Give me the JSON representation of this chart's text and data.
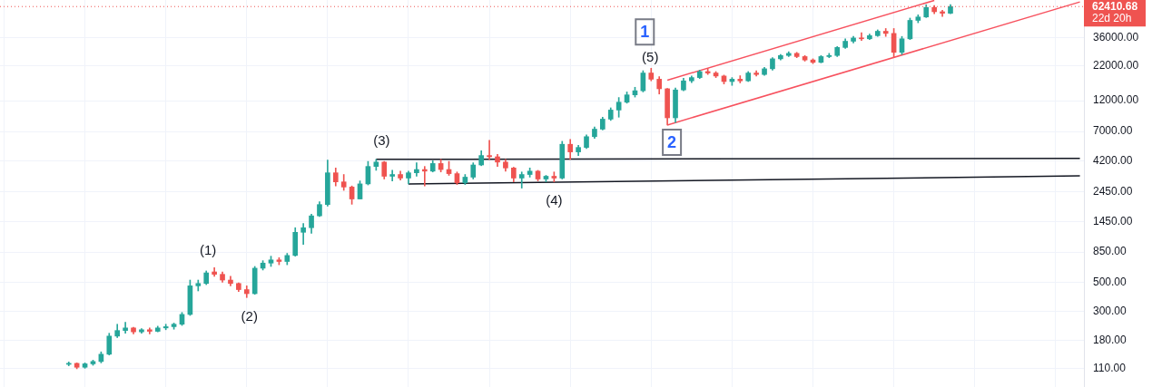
{
  "chart_data": {
    "type": "candlestick",
    "categories": [
      null,
      null,
      null,
      null,
      null,
      null,
      null,
      null,
      null,
      null,
      null,
      null,
      null,
      null,
      null,
      null,
      null,
      null,
      null,
      null,
      null,
      null,
      null,
      null,
      null,
      null,
      null,
      null,
      null,
      null,
      null,
      null,
      null,
      null,
      null,
      null,
      null,
      null,
      null,
      null,
      null,
      null,
      null,
      null,
      null,
      null,
      null,
      null,
      null,
      null,
      null,
      null,
      null,
      null,
      null,
      null,
      null,
      null,
      null,
      null,
      null,
      null,
      null,
      null,
      null,
      null,
      null,
      null,
      null,
      null,
      null,
      null,
      null,
      null,
      null,
      null,
      null,
      null,
      null,
      null,
      null,
      null,
      null,
      null,
      null,
      null,
      null,
      null,
      null,
      null,
      null,
      null,
      null,
      null,
      null,
      null,
      null,
      null,
      null,
      null,
      null,
      null,
      null,
      null,
      null,
      null,
      null,
      null,
      null,
      null,
      null,
      null,
      null,
      null,
      null,
      null,
      null,
      null,
      null,
      null,
      null,
      null,
      null,
      null,
      null,
      null,
      null,
      null,
      null,
      null,
      null,
      null,
      null,
      null
    ],
    "ohlc": [
      null,
      null,
      null,
      null,
      null,
      null,
      null,
      null,
      [
        119,
        124,
        116,
        121
      ],
      [
        121,
        122,
        110,
        113
      ],
      [
        113,
        122,
        111,
        120
      ],
      [
        120,
        128,
        117,
        125
      ],
      [
        125,
        148,
        122,
        142
      ],
      [
        142,
        205,
        140,
        195
      ],
      [
        195,
        240,
        190,
        215
      ],
      [
        215,
        248,
        205,
        225
      ],
      [
        225,
        228,
        203,
        210
      ],
      [
        210,
        222,
        205,
        218
      ],
      [
        218,
        225,
        203,
        212
      ],
      [
        212,
        232,
        210,
        225
      ],
      [
        225,
        240,
        218,
        230
      ],
      [
        230,
        245,
        220,
        240
      ],
      [
        240,
        295,
        235,
        285
      ],
      [
        285,
        520,
        280,
        470
      ],
      [
        470,
        520,
        430,
        490
      ],
      [
        490,
        610,
        480,
        590
      ],
      [
        600,
        645,
        555,
        575
      ],
      [
        575,
        600,
        500,
        520
      ],
      [
        520,
        555,
        470,
        490
      ],
      [
        490,
        495,
        425,
        440
      ],
      [
        440,
        470,
        383,
        410
      ],
      [
        410,
        660,
        405,
        640
      ],
      [
        640,
        730,
        620,
        700
      ],
      [
        700,
        790,
        660,
        740
      ],
      [
        740,
        770,
        680,
        720
      ],
      [
        720,
        830,
        680,
        800
      ],
      [
        800,
        1300,
        790,
        1200
      ],
      [
        1200,
        1400,
        970,
        1300
      ],
      [
        1300,
        1650,
        1180,
        1600
      ],
      [
        1600,
        2050,
        1580,
        1950
      ],
      [
        1950,
        4250,
        1900,
        3400
      ],
      [
        3400,
        3700,
        2700,
        2900
      ],
      [
        2900,
        3300,
        2500,
        2650
      ],
      [
        2650,
        2700,
        1960,
        2150
      ],
      [
        2150,
        2950,
        2150,
        2800
      ],
      [
        2800,
        4150,
        2750,
        3800
      ],
      [
        3800,
        4300,
        3550,
        4100
      ],
      [
        4100,
        4150,
        3050,
        3200
      ],
      [
        3200,
        3550,
        2950,
        3300
      ],
      [
        3300,
        3500,
        3000,
        3100
      ],
      [
        3100,
        3500,
        2800,
        3400
      ],
      [
        3400,
        4050,
        3200,
        3600
      ],
      [
        3600,
        3800,
        2700,
        3500
      ],
      [
        3500,
        4200,
        3450,
        4000
      ],
      [
        4000,
        4300,
        3450,
        3600
      ],
      [
        3600,
        4150,
        3250,
        3350
      ],
      [
        3350,
        3450,
        2770,
        2850
      ],
      [
        2850,
        3300,
        2770,
        3150
      ],
      [
        3150,
        4050,
        3050,
        3900
      ],
      [
        3900,
        5000,
        3850,
        4600
      ],
      [
        4600,
        6000,
        4300,
        4500
      ],
      [
        4500,
        4700,
        3800,
        4100
      ],
      [
        4100,
        4300,
        3500,
        3700
      ],
      [
        3700,
        3750,
        2900,
        3100
      ],
      [
        3100,
        3450,
        2600,
        3300
      ],
      [
        3300,
        3700,
        3150,
        3500
      ],
      [
        3500,
        3550,
        2950,
        3050
      ],
      [
        3050,
        3250,
        2900,
        3200
      ],
      [
        3200,
        3450,
        2900,
        3100
      ],
      [
        3100,
        5900,
        3050,
        5600
      ],
      [
        5600,
        6100,
        4300,
        4900
      ],
      [
        4900,
        5500,
        4600,
        5300
      ],
      [
        5300,
        6600,
        5200,
        6400
      ],
      [
        6400,
        7600,
        6200,
        7300
      ],
      [
        7300,
        9000,
        7200,
        8700
      ],
      [
        8700,
        10600,
        8500,
        10200
      ],
      [
        10200,
        12700,
        9000,
        11700
      ],
      [
        11700,
        14000,
        11500,
        13300
      ],
      [
        13300,
        15200,
        12800,
        14300
      ],
      [
        14300,
        20300,
        14000,
        19500
      ],
      [
        19500,
        21200,
        17000,
        17500
      ],
      [
        17500,
        18300,
        13500,
        14800
      ],
      [
        14800,
        14900,
        7850,
        8900
      ],
      [
        8900,
        15000,
        8200,
        14500
      ],
      [
        14500,
        17800,
        14300,
        17000
      ],
      [
        17000,
        18500,
        16500,
        18000
      ],
      [
        18000,
        20500,
        17700,
        20000
      ],
      [
        20000,
        21100,
        19000,
        19500
      ],
      [
        19500,
        20000,
        18000,
        18500
      ],
      [
        18500,
        18800,
        16100,
        16800
      ],
      [
        16800,
        18000,
        15700,
        17500
      ],
      [
        17500,
        18600,
        16400,
        17000
      ],
      [
        17000,
        20000,
        16800,
        19500
      ],
      [
        19500,
        20300,
        18500,
        19000
      ],
      [
        19000,
        21500,
        18700,
        21000
      ],
      [
        21000,
        25500,
        20500,
        25000
      ],
      [
        25000,
        27000,
        24500,
        26500
      ],
      [
        26500,
        28300,
        26000,
        27500
      ],
      [
        27500,
        28000,
        25500,
        26000
      ],
      [
        26000,
        26500,
        24000,
        24500
      ],
      [
        24500,
        25000,
        23000,
        23500
      ],
      [
        23500,
        26500,
        23300,
        26000
      ],
      [
        26000,
        27500,
        25500,
        26500
      ],
      [
        26500,
        31000,
        26000,
        30500
      ],
      [
        30500,
        35500,
        30000,
        34000
      ],
      [
        34000,
        37000,
        33000,
        36000
      ],
      [
        36000,
        39500,
        34500,
        35500
      ],
      [
        35500,
        38500,
        35000,
        37500
      ],
      [
        37500,
        41500,
        37000,
        40500
      ],
      [
        40500,
        42500,
        37000,
        39000
      ],
      [
        39000,
        42500,
        25900,
        28000
      ],
      [
        28000,
        37000,
        27000,
        35500
      ],
      [
        35500,
        51000,
        35000,
        49000
      ],
      [
        49000,
        54000,
        47000,
        52000
      ],
      [
        52000,
        64500,
        51500,
        61500
      ],
      [
        61500,
        63500,
        55000,
        57000
      ],
      [
        57000,
        58500,
        52500,
        55500
      ],
      [
        55500,
        64500,
        55000,
        62410.68
      ],
      null,
      null,
      null,
      null,
      null,
      null,
      null,
      null,
      null,
      null,
      null,
      null,
      null,
      null,
      null,
      null
    ],
    "colors": [
      null,
      null,
      null,
      null,
      null,
      null,
      null,
      null,
      "#26a69a",
      "#ef5350",
      "#26a69a",
      "#26a69a",
      "#26a69a",
      "#26a69a",
      "#26a69a",
      "#26a69a",
      "#ef5350",
      "#26a69a",
      "#ef5350",
      "#26a69a",
      "#26a69a",
      "#26a69a",
      "#26a69a",
      "#26a69a",
      "#26a69a",
      "#26a69a",
      "#ef5350",
      "#ef5350",
      "#ef5350",
      "#ef5350",
      "#ef5350",
      "#26a69a",
      "#26a69a",
      "#26a69a",
      "#ef5350",
      "#26a69a",
      "#26a69a",
      "#26a69a",
      "#26a69a",
      "#26a69a",
      "#26a69a",
      "#ef5350",
      "#ef5350",
      "#ef5350",
      "#26a69a",
      "#26a69a",
      "#26a69a",
      "#ef5350",
      "#26a69a",
      "#ef5350",
      "#26a69a",
      "#26a69a",
      "#ef5350",
      "#26a69a",
      "#ef5350",
      "#ef5350",
      "#ef5350",
      "#26a69a",
      "#26a69a",
      "#26a69a",
      "#ef5350",
      "#ef5350",
      "#ef5350",
      "#ef5350",
      "#26a69a",
      "#26a69a",
      "#ef5350",
      "#26a69a",
      "#ef5350",
      "#26a69a",
      "#ef5350",
      "#26a69a",
      "#26a69a",
      "#26a69a",
      "#26a69a",
      "#26a69a",
      "#26a69a",
      "#26a69a",
      "#26a69a",
      "#26a69a",
      "#ef5350",
      "#ef5350",
      "#ef5350",
      "#26a69a",
      "#26a69a",
      "#26a69a",
      "#26a69a",
      "#ef5350",
      "#ef5350",
      "#ef5350",
      "#26a69a",
      "#ef5350",
      "#26a69a",
      "#ef5350",
      "#26a69a",
      "#26a69a",
      "#26a69a",
      "#26a69a",
      "#ef5350",
      "#ef5350",
      "#ef5350",
      "#26a69a",
      "#26a69a",
      "#26a69a",
      "#26a69a",
      "#26a69a",
      "#ef5350",
      "#26a69a",
      "#26a69a",
      "#ef5350",
      "#ef5350",
      "#26a69a",
      "#26a69a",
      "#26a69a",
      "#26a69a",
      "#ef5350",
      "#ef5350",
      "#26a69a",
      null,
      null,
      null,
      null,
      null,
      null,
      null,
      null,
      null,
      null,
      null,
      null,
      null,
      null,
      null,
      null
    ],
    "series": [
      {
        "type": "line",
        "color": "#131722",
        "values": [
          null,
          null,
          null,
          null,
          null,
          null,
          null,
          null,
          null,
          null,
          null,
          null,
          null,
          null,
          null,
          null,
          null,
          null,
          null,
          null,
          null,
          null,
          null,
          null,
          null,
          null,
          null,
          null,
          null,
          null,
          null,
          null,
          null,
          null,
          null,
          null,
          null,
          null,
          null,
          null,
          null,
          null,
          null,
          null,
          null,
          null,
          4300,
          null,
          null,
          null,
          null,
          null,
          null,
          null,
          null,
          null,
          null,
          null,
          null,
          null,
          null,
          null,
          null,
          null,
          null,
          null,
          null,
          null,
          null,
          null,
          null,
          null,
          null,
          null,
          null,
          null,
          null,
          null,
          null,
          null,
          null,
          null,
          null,
          null,
          null,
          null,
          null,
          null,
          null,
          null,
          null,
          null,
          null,
          null,
          null,
          null,
          null,
          null,
          null,
          null,
          null,
          null,
          null,
          null,
          null,
          null,
          null,
          null,
          null,
          null,
          null,
          null,
          null,
          null,
          null,
          null,
          null,
          null,
          null,
          null,
          null,
          null,
          null,
          null,
          null,
          null,
          null,
          null,
          null,
          null,
          null,
          null,
          null,
          4380
        ]
      },
      {
        "type": "line",
        "color": "#131722",
        "values": [
          null,
          null,
          null,
          null,
          null,
          null,
          null,
          null,
          null,
          null,
          null,
          null,
          null,
          null,
          null,
          null,
          null,
          null,
          null,
          null,
          null,
          null,
          null,
          null,
          null,
          null,
          null,
          null,
          null,
          null,
          null,
          null,
          null,
          null,
          null,
          null,
          null,
          null,
          null,
          null,
          null,
          null,
          null,
          null,
          null,
          null,
          null,
          null,
          null,
          null,
          2800,
          null,
          null,
          null,
          null,
          null,
          null,
          null,
          null,
          null,
          null,
          null,
          null,
          null,
          null,
          null,
          null,
          null,
          null,
          null,
          null,
          null,
          null,
          null,
          null,
          null,
          null,
          null,
          null,
          null,
          null,
          null,
          null,
          null,
          null,
          null,
          null,
          null,
          null,
          null,
          null,
          null,
          null,
          null,
          null,
          null,
          null,
          null,
          null,
          null,
          null,
          null,
          null,
          null,
          null,
          null,
          null,
          null,
          null,
          null,
          null,
          null,
          null,
          null,
          null,
          null,
          null,
          null,
          null,
          null,
          null,
          null,
          null,
          null,
          null,
          null,
          null,
          null,
          null,
          null,
          null,
          null,
          null,
          3220
        ]
      },
      {
        "type": "line",
        "color": "#f7525f",
        "values": [
          null,
          null,
          null,
          null,
          null,
          null,
          null,
          null,
          null,
          null,
          null,
          null,
          null,
          null,
          null,
          null,
          null,
          null,
          null,
          null,
          null,
          null,
          null,
          null,
          null,
          null,
          null,
          null,
          null,
          null,
          null,
          null,
          null,
          null,
          null,
          null,
          null,
          null,
          null,
          null,
          null,
          null,
          null,
          null,
          null,
          null,
          null,
          null,
          null,
          null,
          null,
          null,
          null,
          null,
          null,
          null,
          null,
          null,
          null,
          null,
          null,
          null,
          null,
          null,
          null,
          null,
          null,
          null,
          null,
          null,
          null,
          null,
          null,
          null,
          null,
          null,
          null,
          null,
          null,
          null,
          null,
          null,
          17200,
          null,
          null,
          null,
          null,
          null,
          null,
          null,
          null,
          null,
          null,
          null,
          null,
          null,
          null,
          null,
          null,
          null,
          null,
          null,
          null,
          null,
          null,
          null,
          null,
          null,
          null,
          null,
          null,
          null,
          null,
          null,
          null,
          69500,
          null,
          null,
          null,
          null,
          null,
          null,
          null,
          null,
          null,
          null,
          null,
          null,
          null,
          null,
          null,
          null,
          null,
          null
        ]
      },
      {
        "type": "line",
        "color": "#f7525f",
        "values": [
          null,
          null,
          null,
          null,
          null,
          null,
          null,
          null,
          null,
          null,
          null,
          null,
          null,
          null,
          null,
          null,
          null,
          null,
          null,
          null,
          null,
          null,
          null,
          null,
          null,
          null,
          null,
          null,
          null,
          null,
          null,
          null,
          null,
          null,
          null,
          null,
          null,
          null,
          null,
          null,
          null,
          null,
          null,
          null,
          null,
          null,
          null,
          null,
          null,
          null,
          null,
          null,
          null,
          null,
          null,
          null,
          null,
          null,
          null,
          null,
          null,
          null,
          null,
          null,
          null,
          null,
          null,
          null,
          null,
          null,
          null,
          null,
          null,
          null,
          null,
          null,
          null,
          null,
          null,
          null,
          null,
          null,
          7850,
          null,
          null,
          null,
          null,
          null,
          null,
          null,
          null,
          null,
          null,
          null,
          null,
          null,
          null,
          null,
          null,
          null,
          null,
          null,
          null,
          null,
          null,
          null,
          null,
          null,
          null,
          null,
          null,
          null,
          null,
          null,
          null,
          null,
          null,
          null,
          null,
          null,
          null,
          null,
          null,
          null,
          null,
          null,
          null,
          null,
          null,
          null,
          null,
          null,
          null,
          67700
        ]
      }
    ],
    "ylim": [
      80,
      70000
    ],
    "yticks": [
      {
        "value": 110,
        "label": "110.00"
      },
      {
        "value": 180,
        "label": "180.00"
      },
      {
        "value": 300,
        "label": "300.00"
      },
      {
        "value": 500,
        "label": "500.00"
      },
      {
        "value": 850,
        "label": "850.00"
      },
      {
        "value": 1450,
        "label": "1450.00"
      },
      {
        "value": 2450,
        "label": "2450.00"
      },
      {
        "value": 4200,
        "label": "4200.00"
      },
      {
        "value": 7000,
        "label": "7000.00"
      },
      {
        "value": 12000,
        "label": "12000.00"
      },
      {
        "value": 22000,
        "label": "22000.00"
      },
      {
        "value": 36000,
        "label": "36000.00"
      }
    ],
    "log": true,
    "grid": true,
    "tick_labels": "y",
    "ref_lines": [
      {
        "axis": "y",
        "value": 62410.68,
        "label": "62410.68",
        "color": "#ef5350",
        "line_style": "dotted"
      }
    ],
    "annotations": [
      {
        "text": "(1)",
        "y": 645
      },
      {
        "text": "(2)",
        "y": 383
      },
      {
        "text": "(3)",
        "y": 4300
      },
      {
        "text": "(4)",
        "y": 2900
      },
      {
        "text": "(5)",
        "y": 21200
      },
      {
        "text": "1",
        "y": 21200
      },
      {
        "text": "2",
        "y": 7850
      },
      "22d 20h"
    ]
  }
}
